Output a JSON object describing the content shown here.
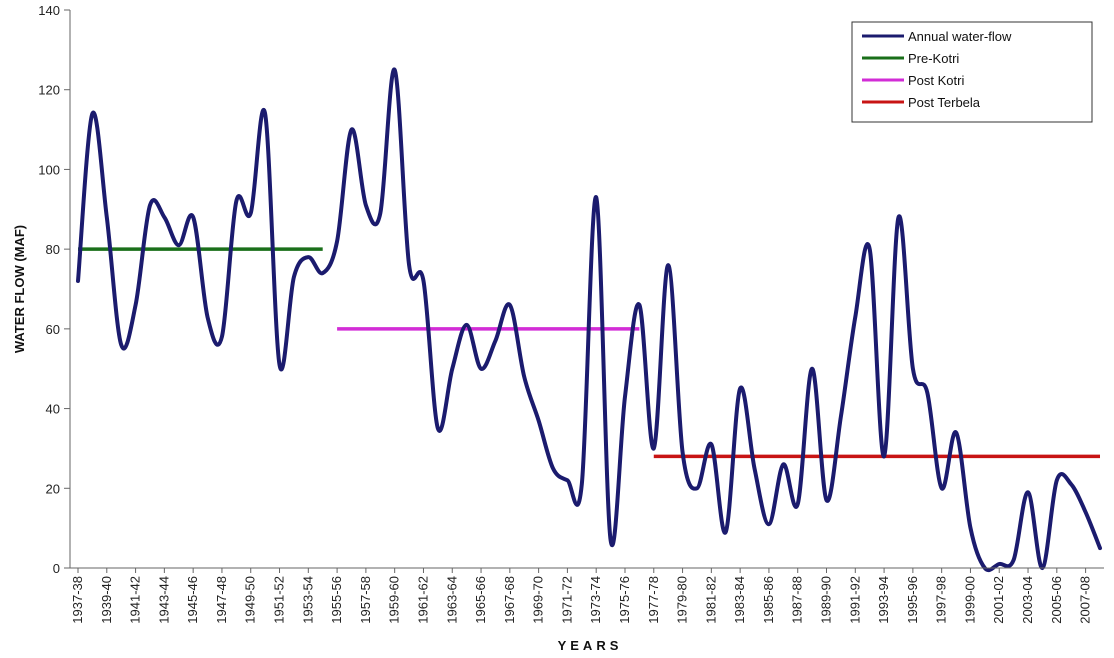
{
  "chart_data": {
    "type": "line",
    "title": "",
    "xlabel": "YEARS",
    "ylabel": "WATER FLOW (MAF)",
    "ylim": [
      0,
      140
    ],
    "yticks": [
      0,
      20,
      40,
      60,
      80,
      100,
      120,
      140
    ],
    "grid": false,
    "legend_position": "top-right",
    "x": [
      "1937-38",
      "1938-39",
      "1939-40",
      "1940-41",
      "1941-42",
      "1942-43",
      "1943-44",
      "1944-45",
      "1945-46",
      "1946-47",
      "1947-48",
      "1948-49",
      "1949-50",
      "1950-51",
      "1951-52",
      "1952-53",
      "1953-54",
      "1954-55",
      "1955-56",
      "1956-57",
      "1957-58",
      "1958-59",
      "1959-60",
      "1960-61",
      "1961-62",
      "1962-63",
      "1963-64",
      "1964-65",
      "1965-66",
      "1966-67",
      "1967-68",
      "1968-69",
      "1969-70",
      "1970-71",
      "1971-72",
      "1972-73",
      "1973-74",
      "1974-75",
      "1975-76",
      "1976-77",
      "1977-78",
      "1978-79",
      "1979-80",
      "1980-81",
      "1981-82",
      "1982-83",
      "1983-84",
      "1984-85",
      "1985-86",
      "1986-87",
      "1987-88",
      "1988-89",
      "1989-90",
      "1990-91",
      "1991-92",
      "1992-93",
      "1993-94",
      "1994-95",
      "1995-96",
      "1996-97",
      "1997-98",
      "1998-99",
      "1999-00",
      "2000-01",
      "2001-02",
      "2002-03",
      "2003-04",
      "2004-05",
      "2005-06",
      "2006-07",
      "2007-08",
      "2008-09"
    ],
    "x_tick_labels": [
      "1937-38",
      "1939-40",
      "1941-42",
      "1943-44",
      "1945-46",
      "1947-48",
      "1949-50",
      "1951-52",
      "1953-54",
      "1955-56",
      "1957-58",
      "1959-60",
      "1961-62",
      "1963-64",
      "1965-66",
      "1967-68",
      "1969-70",
      "1971-72",
      "1973-74",
      "1975-76",
      "1977-78",
      "1979-80",
      "1981-82",
      "1983-84",
      "1985-86",
      "1987-88",
      "1989-90",
      "1991-92",
      "1993-94",
      "1995-96",
      "1997-98",
      "1999-00",
      "2001-02",
      "2003-04",
      "2005-06",
      "2007-08"
    ],
    "series": [
      {
        "name": "Annual water-flow",
        "color": "#1b1b6e",
        "values": [
          72,
          114,
          88,
          56,
          66,
          91,
          88,
          81,
          88,
          63,
          58,
          92,
          89,
          114,
          51,
          73,
          78,
          74,
          82,
          110,
          91,
          89,
          125,
          76,
          72,
          35,
          50,
          61,
          50,
          57,
          66,
          48,
          37,
          25,
          22,
          21,
          93,
          7,
          43,
          66,
          30,
          76,
          29,
          20,
          31,
          9,
          45,
          25,
          11,
          26,
          16,
          50,
          17,
          38,
          63,
          80,
          28,
          88,
          50,
          44,
          20,
          34,
          10,
          0,
          1,
          2,
          19,
          0,
          22,
          21,
          14,
          5
        ]
      },
      {
        "name": "Pre-Kotri",
        "color": "#1a6f1a",
        "x_range": [
          "1937-38",
          "1954-55"
        ],
        "value": 80
      },
      {
        "name": "Post Kotri",
        "color": "#d22cd6",
        "x_range": [
          "1955-56",
          "1976-77"
        ],
        "value": 60
      },
      {
        "name": "Post Terbela",
        "color": "#c81414",
        "x_range": [
          "1977-78",
          "2008-09"
        ],
        "value": 28
      }
    ]
  }
}
